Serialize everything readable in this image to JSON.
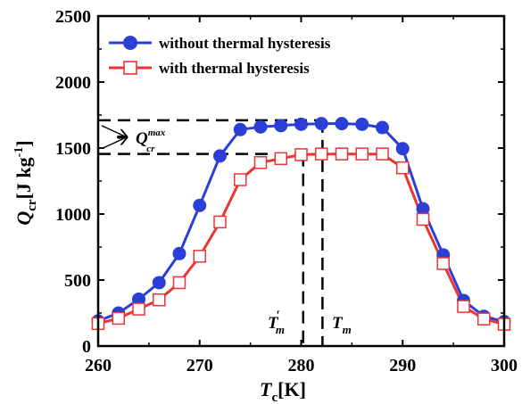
{
  "chart_data": {
    "type": "line",
    "xlabel_main": "T",
    "xlabel_sub": "c",
    "xlabel_unit": "[K]",
    "ylabel_main": "Q",
    "ylabel_sub": "cr",
    "ylabel_unit": "[J kg",
    "ylabel_exp": "-1",
    "ylabel_close": "]",
    "xlim": [
      260,
      300
    ],
    "ylim": [
      0,
      2500
    ],
    "xticks": [
      260,
      270,
      280,
      290,
      300
    ],
    "yticks": [
      0,
      500,
      1000,
      1500,
      2000,
      2500
    ],
    "legend_position": "top-left",
    "series": [
      {
        "name": "without thermal hysteresis",
        "color": "#2b3fd6",
        "marker": "filled-circle",
        "x": [
          260,
          262,
          264,
          266,
          268,
          270,
          272,
          274,
          276,
          278,
          280,
          282,
          284,
          286,
          288,
          290,
          292,
          294,
          296,
          298,
          300
        ],
        "y": [
          190,
          250,
          355,
          480,
          700,
          1065,
          1440,
          1640,
          1660,
          1670,
          1680,
          1685,
          1685,
          1680,
          1655,
          1495,
          1040,
          690,
          345,
          225,
          185
        ]
      },
      {
        "name": "with thermal hysteresis",
        "color": "#ee3333",
        "marker": "open-square",
        "x": [
          260,
          262,
          264,
          266,
          268,
          270,
          272,
          274,
          276,
          278,
          280,
          282,
          284,
          286,
          288,
          290,
          292,
          294,
          296,
          298,
          300
        ],
        "y": [
          170,
          210,
          280,
          350,
          480,
          680,
          940,
          1260,
          1390,
          1420,
          1450,
          1455,
          1455,
          1455,
          1455,
          1350,
          960,
          625,
          300,
          205,
          165
        ]
      }
    ],
    "annotations": {
      "q_max_main": "Q",
      "q_max_sub": "cr",
      "q_max_sup": "max",
      "q_max_upper": 1710,
      "q_max_lower": 1455,
      "t_m_prime_main": "T",
      "t_m_prime_sub": "m",
      "t_m_prime_mark": "′",
      "t_m_prime_x": 280.2,
      "t_m_main": "T",
      "t_m_sub": "m",
      "t_m_x": 282.1
    }
  }
}
